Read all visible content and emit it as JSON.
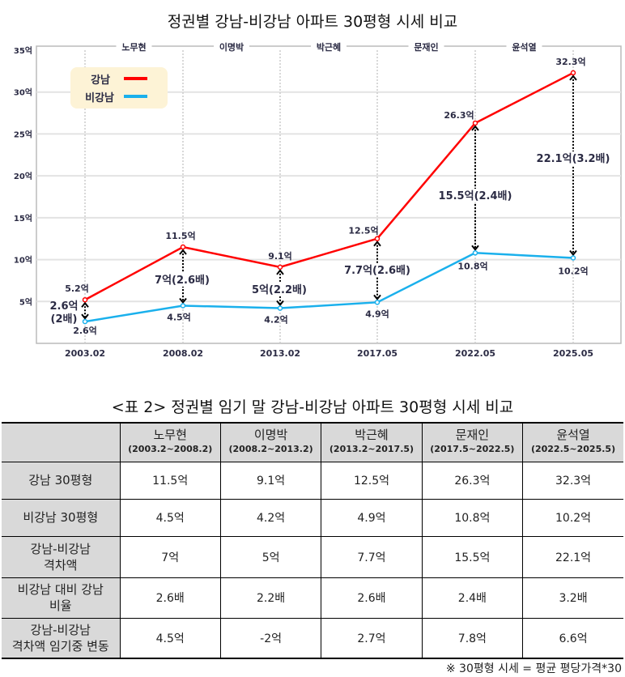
{
  "chart_data": {
    "type": "line",
    "title": "정권별 강남-비강남 아파트 30평형 시세 비교",
    "x": [
      "2003.02",
      "2008.02",
      "2013.02",
      "2017.05",
      "2022.05",
      "2025.05"
    ],
    "ylim": [
      0,
      35
    ],
    "yticks": [
      "5억",
      "10억",
      "15억",
      "20억",
      "25억",
      "30억",
      "35억"
    ],
    "yticks_values": [
      5,
      10,
      15,
      20,
      25,
      30,
      35
    ],
    "grid": true,
    "legend_position": "top-left",
    "presidents": [
      "노무현",
      "이명박",
      "박근혜",
      "문재인",
      "윤석열"
    ],
    "series": [
      {
        "name": "강남",
        "color": "#ff0000",
        "values": [
          5.2,
          11.5,
          9.1,
          12.5,
          26.3,
          32.3
        ],
        "labels": [
          "5.2억",
          "11.5억",
          "9.1억",
          "12.5억",
          "26.3억",
          "32.3억"
        ]
      },
      {
        "name": "비강남",
        "color": "#1ab0ec",
        "values": [
          2.6,
          4.5,
          4.2,
          4.9,
          10.8,
          10.2
        ],
        "labels": [
          "2.6억",
          "4.5억",
          "4.2억",
          "4.9억",
          "10.8억",
          "10.2억"
        ]
      }
    ],
    "gap_annotations": [
      "2.6억\n(2배)",
      "7억(2.6배)",
      "5억(2.2배)",
      "7.7억(2.6배)",
      "15.5억(2.4배)",
      "22.1억(3.2배)"
    ]
  },
  "table": {
    "title": "<표 2> 정권별 임기 말 강남-비강남 아파트 30평형 시세 비교",
    "columns": [
      {
        "name": "노무현",
        "period": "(2003.2~2008.2)"
      },
      {
        "name": "이명박",
        "period": "(2008.2~2013.2)"
      },
      {
        "name": "박근혜",
        "period": "(2013.2~2017.5)"
      },
      {
        "name": "문재인",
        "period": "(2017.5~2022.5)"
      },
      {
        "name": "윤석열",
        "period": "(2022.5~2025.5)"
      }
    ],
    "rows": [
      {
        "label": "강남 30평형",
        "values": [
          "11.5억",
          "9.1억",
          "12.5억",
          "26.3억",
          "32.3억"
        ]
      },
      {
        "label": "비강남 30평형",
        "values": [
          "4.5억",
          "4.2억",
          "4.9억",
          "10.8억",
          "10.2억"
        ]
      },
      {
        "label": "강남-비강남\n격차액",
        "values": [
          "7억",
          "5억",
          "7.7억",
          "15.5억",
          "22.1억"
        ]
      },
      {
        "label": "비강남 대비 강남\n비율",
        "values": [
          "2.6배",
          "2.2배",
          "2.6배",
          "2.4배",
          "3.2배"
        ]
      },
      {
        "label": "강남-비강남\n격차액 임기중 변동",
        "values": [
          "4.5억",
          "-2억",
          "2.7억",
          "7.8억",
          "6.6억"
        ]
      }
    ],
    "footnote": "※ 30평형 시세 = 평균 평당가격*30"
  }
}
